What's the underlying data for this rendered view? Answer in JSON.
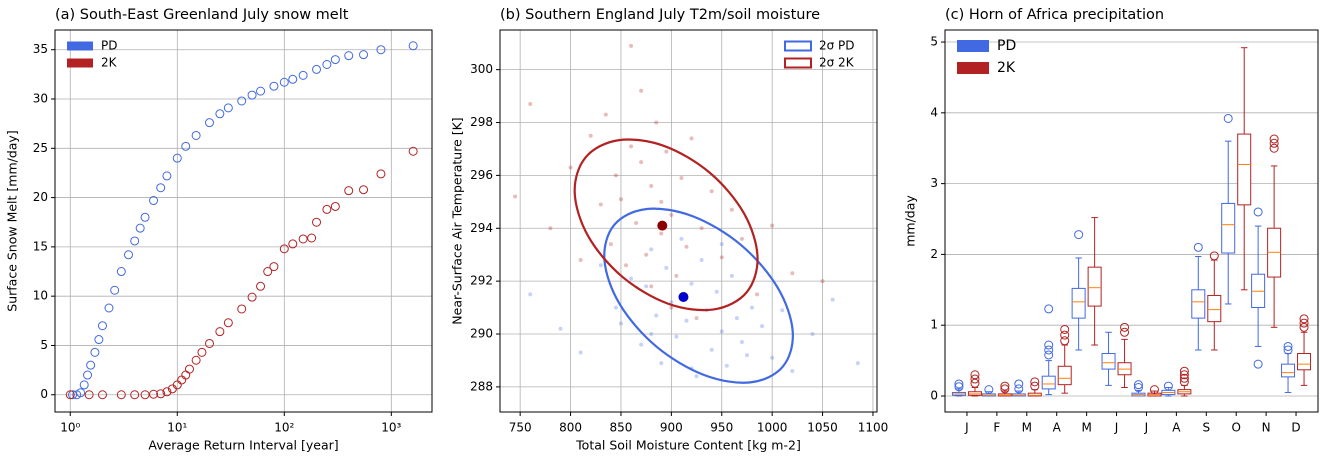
{
  "chart_data": [
    {
      "type": "scatter",
      "title": "(a) South-East Greenland July snow melt",
      "x_label": "Average Return Interval [year]",
      "y_label": "Surface Snow Melt [mm/day]",
      "xlog": true,
      "grid": true,
      "marker": "hollow",
      "legend": "upper left",
      "legend_patch": "filled",
      "xlim": [
        0.72,
        2400
      ],
      "ylim": [
        -1.75,
        37
      ],
      "xticks": [
        {
          "value": 1,
          "label": "10⁰"
        },
        {
          "value": 10,
          "label": "10¹"
        },
        {
          "value": 100,
          "label": "10²"
        },
        {
          "value": 1000,
          "label": "10³"
        }
      ],
      "yticks": [
        0,
        5,
        10,
        15,
        20,
        25,
        30,
        35
      ],
      "series": [
        {
          "name": "PD",
          "color": "#4169e1",
          "x": [
            1.05,
            1.15,
            1.25,
            1.35,
            1.45,
            1.55,
            1.7,
            1.85,
            2,
            2.3,
            2.6,
            3,
            3.5,
            4,
            4.5,
            5,
            6,
            7,
            8,
            10,
            12,
            15,
            20,
            25,
            30,
            40,
            50,
            60,
            80,
            100,
            120,
            150,
            200,
            250,
            300,
            400,
            550,
            800,
            1600
          ],
          "y": [
            0,
            0,
            0.2,
            1,
            2,
            3,
            4.3,
            5.6,
            7,
            8.8,
            10.6,
            12.5,
            14.2,
            15.6,
            16.9,
            18,
            19.7,
            21,
            22.2,
            24,
            25.2,
            26.3,
            27.6,
            28.5,
            29.1,
            29.8,
            30.4,
            30.8,
            31.3,
            31.7,
            32,
            32.4,
            33,
            33.5,
            34,
            34.4,
            34.5,
            35,
            35.4
          ]
        },
        {
          "name": "2K",
          "color": "#b22222",
          "x": [
            1,
            1.5,
            2,
            3,
            4,
            5,
            6,
            7,
            8,
            9,
            10,
            11,
            12,
            13,
            15,
            17,
            20,
            25,
            30,
            40,
            50,
            60,
            70,
            80,
            100,
            120,
            150,
            180,
            200,
            250,
            300,
            400,
            550,
            800,
            1600
          ],
          "y": [
            0,
            0,
            0,
            0,
            0,
            0,
            0.05,
            0.1,
            0.3,
            0.6,
            1,
            1.5,
            2,
            2.6,
            3.5,
            4.3,
            5.2,
            6.4,
            7.3,
            8.7,
            9.9,
            11,
            12.5,
            13,
            14.8,
            15.3,
            15.8,
            15.9,
            17.5,
            18.8,
            19.1,
            20.7,
            20.8,
            22.4,
            24.7
          ]
        }
      ]
    },
    {
      "type": "scatter",
      "title": "(b) Southern England July T2m/soil moisture",
      "x_label": "Total Soil Moisture Content [kg m-2]",
      "y_label": "Near-Surface Air Temperature [K]",
      "xlog": false,
      "grid": true,
      "marker": "dot",
      "legend": "upper right",
      "legend_patch": "outline",
      "xlim": [
        730,
        1104
      ],
      "ylim": [
        287.05,
        301.5
      ],
      "xticks": [
        750,
        800,
        850,
        900,
        950,
        1000,
        1050,
        1100
      ],
      "yticks": [
        288,
        290,
        292,
        294,
        296,
        298,
        300
      ],
      "series": [
        {
          "name": "2σ PD",
          "color": "#4169e1",
          "mean_color": "#0000cd",
          "x": [
            760,
            790,
            810,
            830,
            845,
            850,
            860,
            870,
            875,
            880,
            885,
            890,
            895,
            900,
            905,
            910,
            915,
            920,
            925,
            930,
            935,
            940,
            945,
            950,
            955,
            960,
            965,
            970,
            980,
            990,
            1000,
            1010,
            1020,
            1040,
            1060,
            1085,
            880,
            920,
            950,
            975
          ],
          "y": [
            291.5,
            290.2,
            289.3,
            292.6,
            291.0,
            290.4,
            292.1,
            289.6,
            291.8,
            293.2,
            290.7,
            288.9,
            292.5,
            291.2,
            289.9,
            293.6,
            290.5,
            291.9,
            288.4,
            292.8,
            290.9,
            289.4,
            291.6,
            290.1,
            288.8,
            292.2,
            290.6,
            289.7,
            291.0,
            290.3,
            289.1,
            290.9,
            288.6,
            290.0,
            291.3,
            288.9,
            290.0,
            288.7,
            293.4,
            289.2
          ],
          "mean_x": 912,
          "mean_y": 291.4,
          "ellipse_x": [
            1010.6,
            978.4,
            932.5,
            885.0,
            848.8,
            833.6,
            843.4,
            875.6,
            921.5,
            969.0,
            1005.2,
            1020.4
          ],
          "ellipse_y": [
            288.77,
            288.17,
            288.45,
            289.53,
            291.13,
            292.81,
            294.13,
            294.73,
            294.45,
            293.37,
            291.77,
            290.09
          ]
        },
        {
          "name": "2σ 2K",
          "color": "#b22222",
          "mean_color": "#8b0000",
          "x": [
            745,
            760,
            780,
            800,
            810,
            820,
            830,
            835,
            840,
            845,
            850,
            855,
            860,
            865,
            870,
            875,
            880,
            885,
            890,
            895,
            900,
            905,
            910,
            915,
            920,
            930,
            940,
            950,
            960,
            970,
            985,
            1000,
            1020,
            1050,
            860,
            880,
            900,
            925,
            870,
            890
          ],
          "y": [
            295.2,
            298.7,
            294.0,
            296.3,
            292.8,
            297.5,
            294.9,
            298.3,
            293.4,
            296.0,
            295.1,
            292.6,
            297.1,
            294.2,
            296.5,
            293.0,
            295.6,
            298.0,
            293.8,
            296.9,
            294.5,
            292.2,
            295.9,
            293.3,
            297.4,
            294.0,
            295.4,
            292.9,
            294.7,
            293.6,
            291.5,
            294.1,
            292.3,
            292.0,
            300.9,
            291.8,
            291.0,
            290.6,
            299.2,
            295.0
          ],
          "mean_x": 891,
          "mean_y": 294.1,
          "ellipse_x": [
            974.5,
            942.1,
            897.2,
            851.5,
            817.5,
            804.1,
            815.1,
            847.5,
            892.4,
            938.1,
            972.1,
            985.5
          ],
          "ellipse_y": [
            291.57,
            290.93,
            291.14,
            292.16,
            293.7,
            295.36,
            296.69,
            297.33,
            297.12,
            296.1,
            294.56,
            292.9
          ]
        }
      ]
    },
    {
      "type": "box",
      "title": "(c) Horn of Africa precipitation",
      "y_label": "mm/day",
      "grid": true,
      "legend": "upper left",
      "legend_patch": "filled",
      "median_color": "#ff7f0e",
      "ylim": [
        -0.226,
        5.17
      ],
      "yticks": [
        0,
        1,
        2,
        3,
        4,
        5
      ],
      "categories": [
        "J",
        "F",
        "M",
        "A",
        "M",
        "J",
        "J",
        "A",
        "S",
        "O",
        "N",
        "D"
      ],
      "series": [
        {
          "name": "PD",
          "color": "#4169e1",
          "boxes": [
            {
              "q1": 0.01,
              "median": 0.03,
              "q3": 0.05,
              "whislo": 0,
              "whishi": 0.1,
              "fliers": [
                0.13,
                0.17
              ]
            },
            {
              "q1": 0,
              "median": 0.01,
              "q3": 0.03,
              "whislo": 0,
              "whishi": 0.06,
              "fliers": [
                0.09
              ]
            },
            {
              "q1": 0,
              "median": 0.01,
              "q3": 0.03,
              "whislo": 0,
              "whishi": 0.07,
              "fliers": [
                0.1,
                0.17
              ]
            },
            {
              "q1": 0.1,
              "median": 0.17,
              "q3": 0.28,
              "whislo": 0.02,
              "whishi": 0.5,
              "fliers": [
                0.58,
                0.65,
                0.72,
                1.23
              ]
            },
            {
              "q1": 1.1,
              "median": 1.33,
              "q3": 1.52,
              "whislo": 0.65,
              "whishi": 1.95,
              "fliers": [
                2.28
              ]
            },
            {
              "q1": 0.38,
              "median": 0.47,
              "q3": 0.6,
              "whislo": 0.15,
              "whishi": 0.9,
              "fliers": []
            },
            {
              "q1": 0,
              "median": 0.02,
              "q3": 0.04,
              "whislo": 0,
              "whishi": 0.08,
              "fliers": [
                0.12,
                0.16
              ]
            },
            {
              "q1": 0.02,
              "median": 0.05,
              "q3": 0.08,
              "whislo": 0,
              "whishi": 0.12,
              "fliers": [
                0.14
              ]
            },
            {
              "q1": 1.1,
              "median": 1.33,
              "q3": 1.5,
              "whislo": 0.65,
              "whishi": 1.97,
              "fliers": [
                2.1
              ]
            },
            {
              "q1": 2.02,
              "median": 2.42,
              "q3": 2.72,
              "whislo": 1.3,
              "whishi": 3.6,
              "fliers": [
                3.92
              ]
            },
            {
              "q1": 1.25,
              "median": 1.48,
              "q3": 1.72,
              "whislo": 0.7,
              "whishi": 2.4,
              "fliers": [
                0.45,
                2.6
              ]
            },
            {
              "q1": 0.27,
              "median": 0.33,
              "q3": 0.45,
              "whislo": 0.05,
              "whishi": 0.6,
              "fliers": [
                0.65,
                0.7
              ]
            }
          ]
        },
        {
          "name": "2K",
          "color": "#b22222",
          "boxes": [
            {
              "q1": 0.01,
              "median": 0.03,
              "q3": 0.06,
              "whislo": 0,
              "whishi": 0.12,
              "fliers": [
                0.18,
                0.24,
                0.3
              ]
            },
            {
              "q1": 0,
              "median": 0.01,
              "q3": 0.03,
              "whislo": 0,
              "whishi": 0.07,
              "fliers": [
                0.1,
                0.14
              ]
            },
            {
              "q1": 0,
              "median": 0.01,
              "q3": 0.04,
              "whislo": 0,
              "whishi": 0.09,
              "fliers": [
                0.14,
                0.2
              ]
            },
            {
              "q1": 0.16,
              "median": 0.25,
              "q3": 0.42,
              "whislo": 0.04,
              "whishi": 0.72,
              "fliers": [
                0.78,
                0.86,
                0.94
              ]
            },
            {
              "q1": 1.27,
              "median": 1.53,
              "q3": 1.82,
              "whislo": 0.72,
              "whishi": 2.52,
              "fliers": []
            },
            {
              "q1": 0.3,
              "median": 0.38,
              "q3": 0.47,
              "whislo": 0.12,
              "whishi": 0.8,
              "fliers": [
                0.9,
                0.97
              ]
            },
            {
              "q1": 0,
              "median": 0.02,
              "q3": 0.04,
              "whislo": 0,
              "whishi": 0.07,
              "fliers": [
                0.09
              ]
            },
            {
              "q1": 0.03,
              "median": 0.06,
              "q3": 0.09,
              "whislo": 0,
              "whishi": 0.15,
              "fliers": [
                0.2,
                0.25,
                0.3,
                0.35
              ]
            },
            {
              "q1": 1.05,
              "median": 1.22,
              "q3": 1.42,
              "whislo": 0.65,
              "whishi": 1.92,
              "fliers": [
                1.98
              ]
            },
            {
              "q1": 2.7,
              "median": 3.27,
              "q3": 3.7,
              "whislo": 1.5,
              "whishi": 4.92,
              "fliers": []
            },
            {
              "q1": 1.68,
              "median": 2.03,
              "q3": 2.37,
              "whislo": 0.97,
              "whishi": 3.25,
              "fliers": [
                3.5,
                3.57,
                3.63
              ]
            },
            {
              "q1": 0.37,
              "median": 0.45,
              "q3": 0.6,
              "whislo": 0.15,
              "whishi": 0.9,
              "fliers": [
                0.97,
                1.03,
                1.09
              ]
            }
          ]
        }
      ]
    }
  ]
}
